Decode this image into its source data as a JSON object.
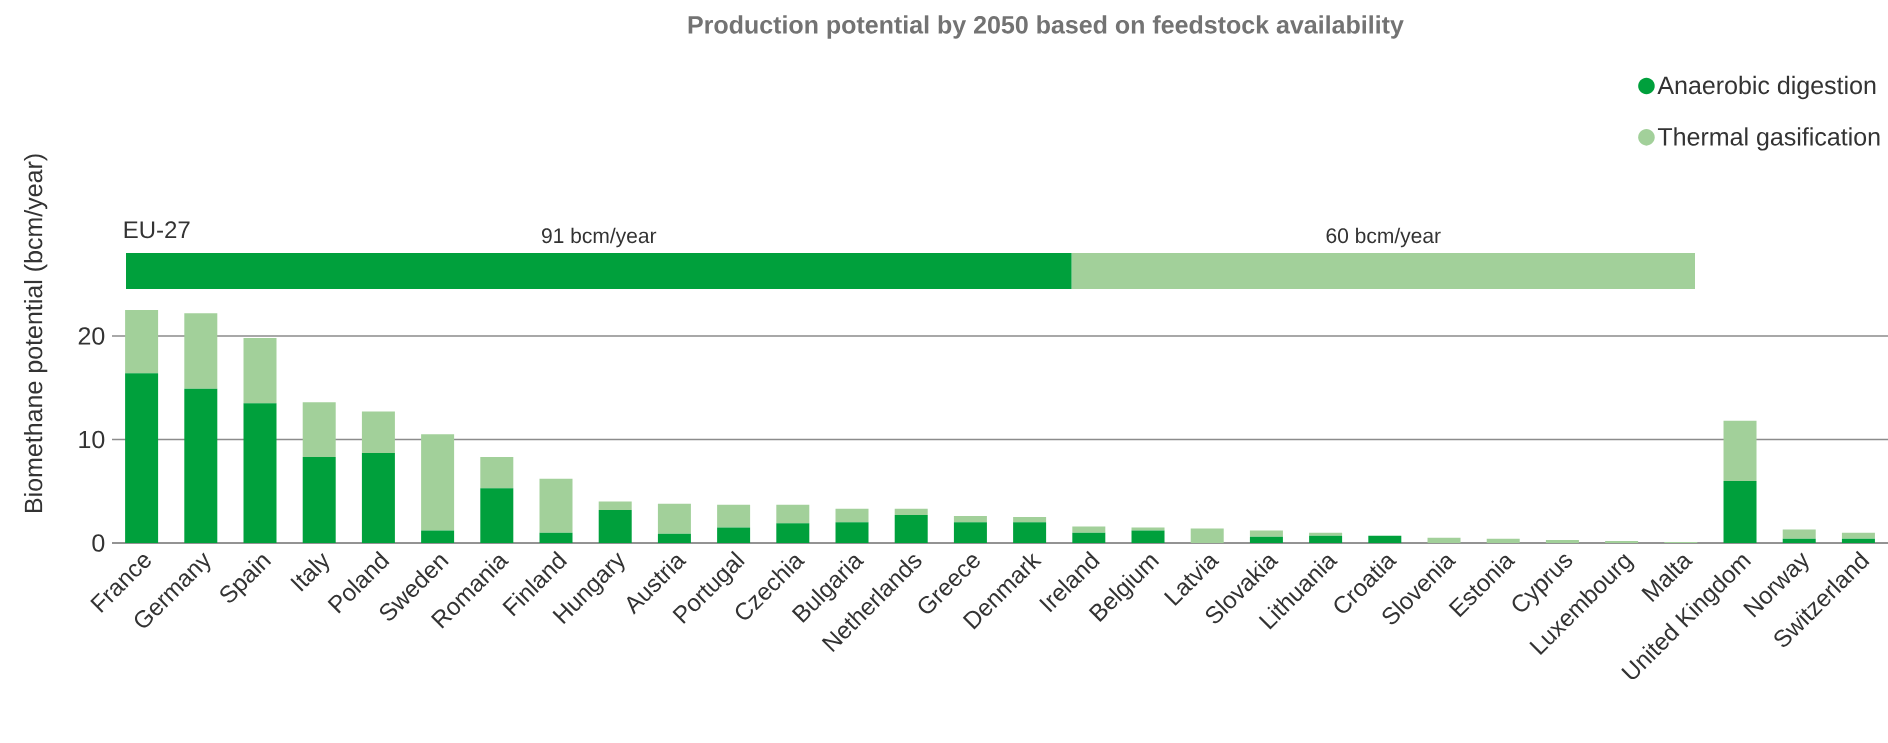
{
  "chart_data": [
    {
      "type": "bar",
      "ylabel": "Biomethane potential (bcm/year)",
      "categories": [
        "France",
        "Germany",
        "Spain",
        "Italy",
        "Poland",
        "Sweden",
        "Romania",
        "Finland",
        "Hungary",
        "Austria",
        "Portugal",
        "Czechia",
        "Bulgaria",
        "Netherlands",
        "Greece",
        "Denmark",
        "Ireland",
        "Belgium",
        "Latvia",
        "Slovakia",
        "Lithuania",
        "Croatia",
        "Slovenia",
        "Estonia",
        "Cyprus",
        "Luxembourg",
        "Malta",
        "United Kingdom",
        "Norway",
        "Switzerland"
      ],
      "series": [
        {
          "name": "Anaerobic digestion",
          "color": "#00a03c",
          "values": [
            16.4,
            14.9,
            13.5,
            8.3,
            8.7,
            1.2,
            5.3,
            1.0,
            3.2,
            0.9,
            1.5,
            1.9,
            2.0,
            2.7,
            2.0,
            2.0,
            1.0,
            1.2,
            0,
            0.6,
            0.7,
            0.7,
            0,
            0,
            0,
            0,
            0,
            6.0,
            0.4,
            0.4
          ]
        },
        {
          "name": "Thermal gasification",
          "color": "#a2d09a",
          "values": [
            6.1,
            7.3,
            6.3,
            5.3,
            4.0,
            9.3,
            3.0,
            5.2,
            0.8,
            2.9,
            2.2,
            1.8,
            1.3,
            0.6,
            0.6,
            0.5,
            0.6,
            0.3,
            1.4,
            0.6,
            0.3,
            0,
            0.5,
            0.4,
            0.3,
            0.2,
            0.1,
            5.8,
            0.9,
            0.6
          ]
        }
      ],
      "stacked": true,
      "ylim": [
        0,
        22.5
      ],
      "yticks": [
        0,
        10,
        20
      ],
      "grid": "y",
      "legend": "top right"
    },
    {
      "type": "bar",
      "title": "Production potential by 2050 based on feedstock availability",
      "orientation": "horizontal",
      "stacked": true,
      "categories": [
        "EU-27"
      ],
      "series": [
        {
          "color": "#00a03c",
          "values": [
            91
          ],
          "value_labels": [
            "91 bcm/year"
          ]
        },
        {
          "color": "#a2d09a",
          "values": [
            60
          ],
          "value_labels": [
            "60 bcm/year"
          ]
        }
      ]
    }
  ]
}
